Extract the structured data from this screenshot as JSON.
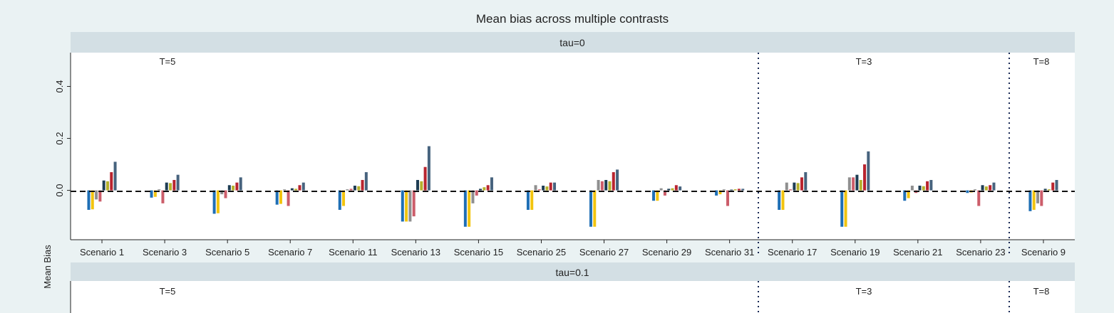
{
  "chart_data": {
    "type": "bar",
    "title": "Mean bias across multiple contrasts",
    "ylabel": "Mean Bias",
    "ylim": [
      -0.19,
      0.53
    ],
    "yticks": [
      0.0,
      0.2,
      0.4
    ],
    "ytick_labels": [
      "0.0",
      "0.2",
      "0.4"
    ],
    "reference_line": 0,
    "colors": [
      "#1f6fb5",
      "#f2c40f",
      "#8f8f8f",
      "#cc5d6a",
      "#1e3d54",
      "#b5b02b",
      "#b8242f",
      "#47637e"
    ],
    "panels": [
      {
        "label": "tau=0",
        "groups": [
          {
            "label": "T=5"
          },
          {
            "label": "T=3"
          },
          {
            "label": "T=8"
          }
        ],
        "categories": [
          "Scenario 1",
          "Scenario 3",
          "Scenario 5",
          "Scenario 7",
          "Scenario 11",
          "Scenario 13",
          "Scenario 15",
          "Scenario 25",
          "Scenario 27",
          "Scenario 29",
          "Scenario 31",
          "Scenario 17",
          "Scenario 19",
          "Scenario 21",
          "Scenario 23",
          "Scenario 9"
        ],
        "values": [
          [
            -0.075,
            -0.073,
            -0.035,
            -0.043,
            0.038,
            0.035,
            0.07,
            0.11
          ],
          [
            -0.028,
            -0.025,
            0.004,
            -0.05,
            0.03,
            0.028,
            0.04,
            0.06
          ],
          [
            -0.09,
            -0.088,
            -0.015,
            -0.03,
            0.02,
            0.018,
            0.03,
            0.05
          ],
          [
            -0.055,
            -0.052,
            0.004,
            -0.06,
            0.008,
            0.006,
            0.02,
            0.03
          ],
          [
            -0.075,
            -0.06,
            0.004,
            0.006,
            0.018,
            0.016,
            0.04,
            0.07
          ],
          [
            -0.12,
            -0.12,
            -0.12,
            -0.1,
            0.04,
            0.035,
            0.09,
            0.17
          ],
          [
            -0.14,
            -0.14,
            -0.05,
            -0.02,
            0.006,
            0.012,
            0.02,
            0.05
          ],
          [
            -0.075,
            -0.075,
            0.02,
            0.004,
            0.018,
            0.015,
            0.03,
            0.03
          ],
          [
            -0.14,
            -0.14,
            0.04,
            0.035,
            0.04,
            0.035,
            0.07,
            0.08
          ],
          [
            -0.04,
            -0.04,
            0.008,
            -0.02,
            0.006,
            0.008,
            0.02,
            0.015
          ],
          [
            -0.02,
            -0.015,
            0.004,
            -0.06,
            0.003,
            0.004,
            0.006,
            0.006
          ],
          [
            -0.075,
            -0.075,
            0.03,
            0.004,
            0.03,
            0.028,
            0.05,
            0.07
          ],
          [
            -0.14,
            -0.14,
            0.05,
            0.05,
            0.06,
            0.04,
            0.1,
            0.15
          ],
          [
            -0.04,
            -0.03,
            0.018,
            -0.01,
            0.018,
            0.016,
            0.035,
            0.04
          ],
          [
            -0.01,
            -0.008,
            0.004,
            -0.06,
            0.02,
            0.015,
            0.02,
            0.03
          ],
          [
            -0.08,
            -0.075,
            -0.05,
            -0.06,
            0.006,
            0.004,
            0.03,
            0.04
          ]
        ]
      },
      {
        "label": "tau=0.1",
        "groups": [
          {
            "label": "T=5"
          },
          {
            "label": "T=3"
          },
          {
            "label": "T=8"
          }
        ]
      }
    ]
  }
}
